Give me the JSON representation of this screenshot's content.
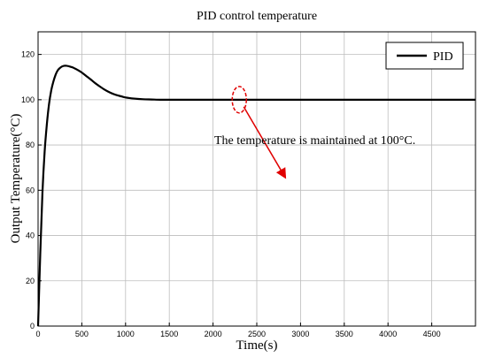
{
  "chart_data": {
    "type": "line",
    "title": "PID control temperature",
    "xlabel": "Time(s)",
    "ylabel": "Output Temperature(°C)",
    "xlim": [
      0,
      5000
    ],
    "ylim": [
      0,
      130
    ],
    "xticks": [
      0,
      500,
      1000,
      1500,
      2000,
      2500,
      3000,
      3500,
      4000,
      4500
    ],
    "yticks": [
      0,
      20,
      40,
      60,
      80,
      100,
      120
    ],
    "grid": true,
    "legend_position": "top-right",
    "series": [
      {
        "name": "PID",
        "color": "#000000",
        "x": [
          0,
          25,
          50,
          75,
          100,
          125,
          150,
          175,
          200,
          225,
          250,
          275,
          300,
          325,
          350,
          375,
          400,
          425,
          450,
          500,
          550,
          600,
          650,
          700,
          750,
          800,
          850,
          900,
          950,
          1000,
          1100,
          1200,
          1300,
          1400,
          1500,
          2000,
          2500,
          3000,
          3500,
          4000,
          4500,
          5000
        ],
        "y": [
          0,
          32,
          59,
          77,
          89,
          98,
          104,
          108,
          111,
          113,
          114,
          114.7,
          115,
          115,
          114.8,
          114.5,
          114.2,
          113.7,
          113.2,
          112,
          110.5,
          109,
          107.4,
          106,
          104.7,
          103.6,
          102.7,
          102,
          101.5,
          101,
          100.5,
          100.2,
          100.1,
          100,
          100,
          100,
          100,
          100,
          100,
          100,
          100,
          100
        ]
      }
    ],
    "annotation": {
      "text": "The temperature is maintained at 100°C.",
      "color": "#e00000",
      "ellipse_center": [
        2300,
        100
      ],
      "arrow_to": [
        2820,
        66
      ]
    }
  }
}
